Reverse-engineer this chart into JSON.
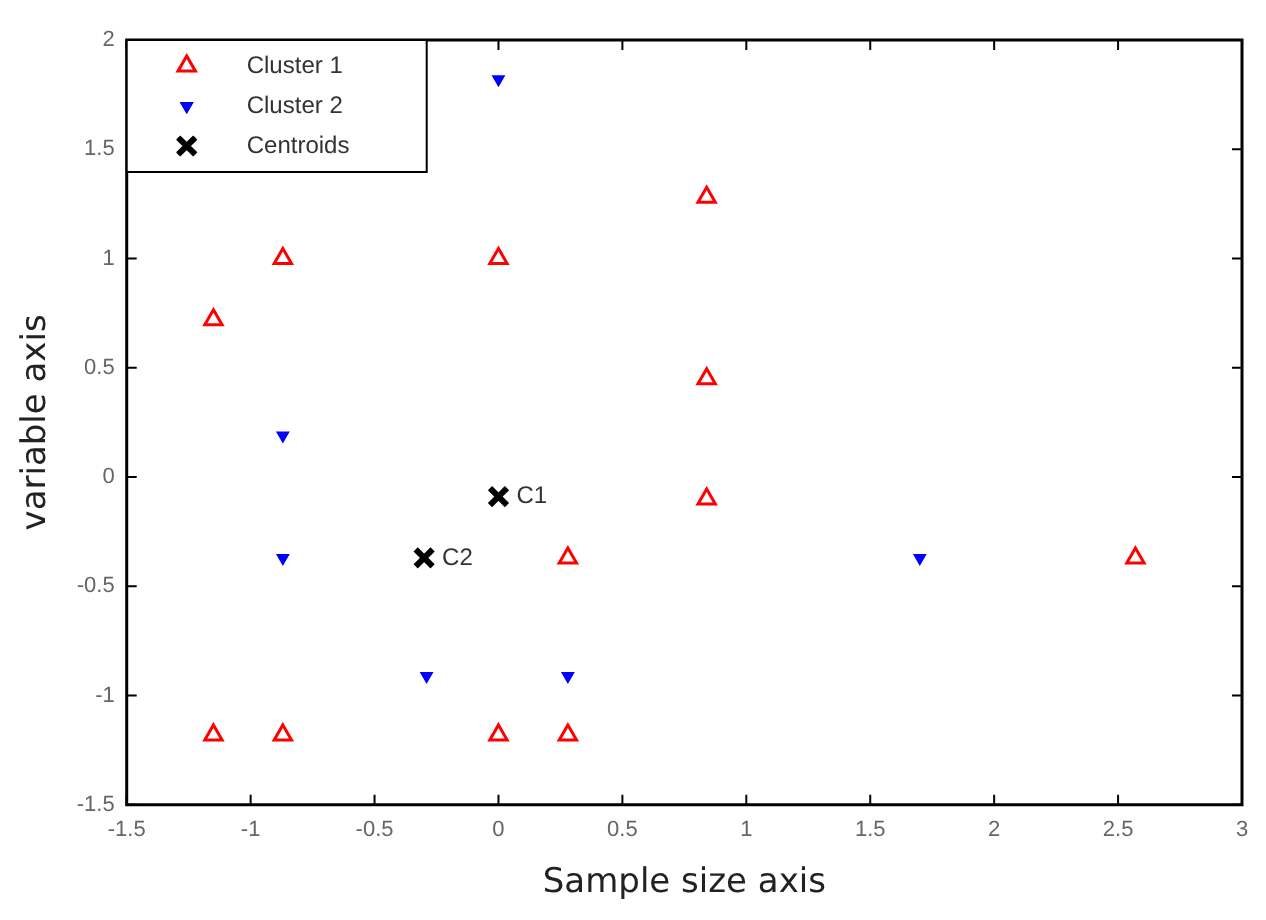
{
  "chart_data": {
    "type": "scatter",
    "xlabel": "Sample size axis",
    "ylabel": "variable axis",
    "xlim": [
      -1.5,
      3
    ],
    "xticks": [
      -1.5,
      -1,
      -0.5,
      0,
      0.5,
      1,
      1.5,
      2,
      2.5,
      3
    ],
    "ylim": [
      -1.5,
      2
    ],
    "yticks": [
      -1.5,
      -1,
      -0.5,
      0,
      0.5,
      1,
      1.5,
      2
    ],
    "grid": false,
    "legend": "top left",
    "series": [
      {
        "name": "Cluster 1",
        "color": "#ff0000",
        "marker": "triangle",
        "x": [
          -1.15,
          -0.87,
          0,
          0.84,
          0.84,
          0.84,
          0.28,
          2.57,
          -1.15,
          -0.87,
          0,
          0.28
        ],
        "values": [
          0.72,
          1.0,
          1.0,
          1.28,
          0.45,
          -0.1,
          -0.37,
          -0.37,
          -1.18,
          -1.18,
          -1.18,
          -1.18
        ]
      },
      {
        "name": "Cluster 2",
        "color": "#0000ff",
        "marker": "triangle",
        "x": [
          0,
          -0.87,
          -0.87,
          -0.29,
          0.28,
          1.7
        ],
        "values": [
          1.82,
          0.19,
          -0.37,
          -0.91,
          -0.91,
          -0.37
        ]
      },
      {
        "name": "Centroids",
        "color": "#000000",
        "marker": "cross",
        "x": [
          0,
          -0.3
        ],
        "values": [
          -0.09,
          -0.37
        ]
      }
    ],
    "annotations": [
      {
        "text": "C1",
        "x": 0,
        "y": -0.09
      },
      {
        "text": "C2",
        "x": -0.3,
        "y": -0.37
      }
    ]
  }
}
